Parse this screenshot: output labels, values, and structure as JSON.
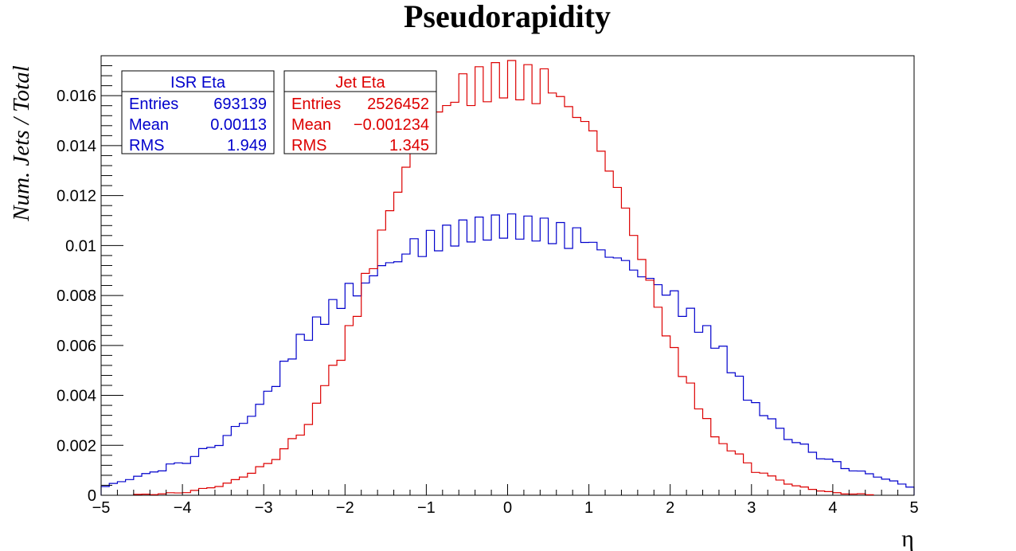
{
  "chart_data": {
    "type": "histogram-step",
    "title": "Pseudorapidity",
    "xlabel": "η",
    "ylabel": "Num. Jets / Total",
    "xlim": [
      -5,
      5
    ],
    "ylim": [
      0,
      0.0176
    ],
    "x_ticks": [
      -5,
      -4,
      -3,
      -2,
      -1,
      0,
      1,
      2,
      3,
      4,
      5
    ],
    "x_tick_labels": [
      "−5",
      "−4",
      "−3",
      "−2",
      "−1",
      "0",
      "1",
      "2",
      "3",
      "4",
      "5"
    ],
    "y_ticks": [
      0,
      0.002,
      0.004,
      0.006,
      0.008,
      0.01,
      0.012,
      0.014,
      0.016
    ],
    "y_tick_labels": [
      "0",
      "0.002",
      "0.004",
      "0.006",
      "0.008",
      "0.01",
      "0.012",
      "0.014",
      "0.016"
    ],
    "bin_width": 0.1,
    "series": [
      {
        "name": "ISR Eta",
        "color": "#0000cc",
        "entries": "693139",
        "mean": "0.00113",
        "rms": "1.949",
        "anchors_x": [
          -5.0,
          -4.5,
          -4.0,
          -3.5,
          -3.0,
          -2.6,
          -2.0,
          -1.5,
          -1.0,
          -0.5,
          0.0,
          0.5,
          1.0,
          1.5,
          2.0,
          2.6,
          3.0,
          3.5,
          4.0,
          4.5,
          5.0
        ],
        "anchors_y": [
          0.0003,
          0.0008,
          0.0013,
          0.0022,
          0.0037,
          0.006,
          0.008,
          0.0092,
          0.0101,
          0.0106,
          0.0108,
          0.0106,
          0.0101,
          0.0092,
          0.008,
          0.006,
          0.0037,
          0.0022,
          0.0013,
          0.0008,
          0.0003
        ],
        "zigzag_ranges": [
          [
            -3.0,
            -1.8
          ],
          [
            -1.2,
            0.9
          ],
          [
            2.0,
            3.1
          ]
        ]
      },
      {
        "name": "Jet Eta",
        "color": "#dd0000",
        "entries": "2526452",
        "mean": "−0.001234",
        "rms": "1.345",
        "anchors_x": [
          -4.6,
          -4.0,
          -3.5,
          -3.0,
          -2.5,
          -2.0,
          -1.5,
          -1.2,
          -1.0,
          -0.5,
          0.0,
          0.5,
          1.0,
          1.2,
          1.5,
          2.0,
          2.5,
          3.0,
          3.5,
          4.0,
          4.5
        ],
        "anchors_y": [
          1e-05,
          0.0001,
          0.0004,
          0.0011,
          0.0026,
          0.006,
          0.011,
          0.0135,
          0.0148,
          0.0163,
          0.0167,
          0.0163,
          0.0148,
          0.0135,
          0.011,
          0.006,
          0.0026,
          0.0011,
          0.0004,
          0.0001,
          1e-05
        ],
        "zigzag_ranges": [
          [
            -2.2,
            -1.6
          ],
          [
            -0.6,
            0.5
          ],
          [
            2.0,
            2.6
          ]
        ]
      }
    ],
    "legend": [
      {
        "title": "ISR Eta",
        "color": "#0000cc",
        "rows": [
          {
            "label": "Entries",
            "value": "693139"
          },
          {
            "label": "Mean",
            "value": "0.00113"
          },
          {
            "label": "RMS",
            "value": "1.949"
          }
        ]
      },
      {
        "title": "Jet Eta",
        "color": "#dd0000",
        "rows": [
          {
            "label": "Entries",
            "value": "2526452"
          },
          {
            "label": "Mean",
            "value": "−0.001234"
          },
          {
            "label": "RMS",
            "value": "1.345"
          }
        ]
      }
    ],
    "legend_placement": "top-left",
    "grid": false
  }
}
